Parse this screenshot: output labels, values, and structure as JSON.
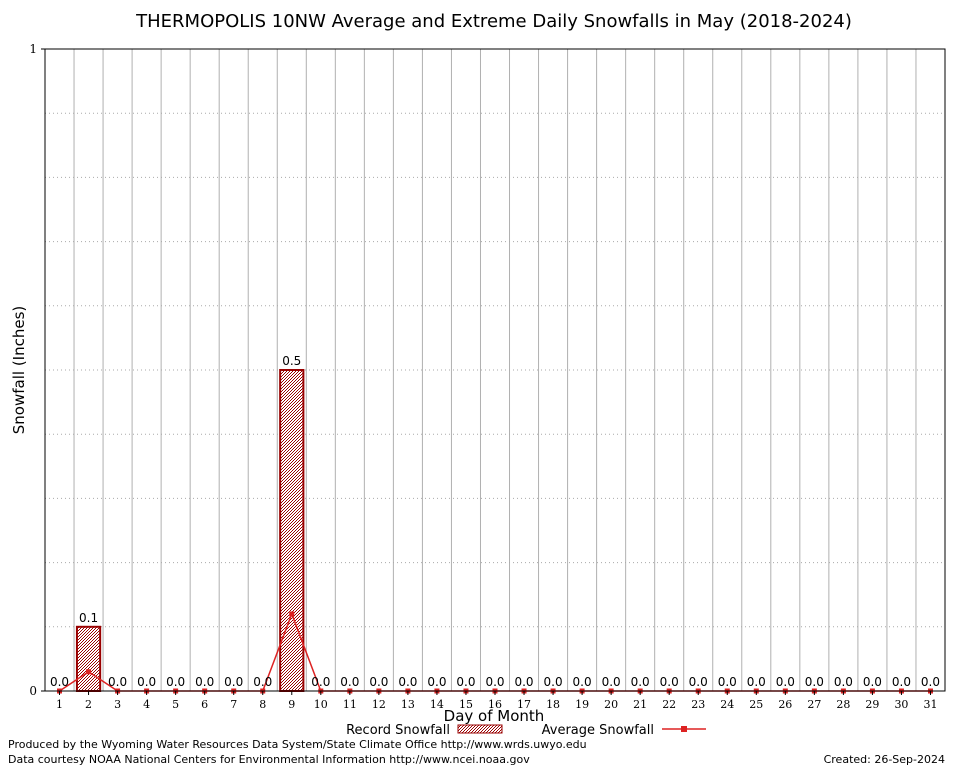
{
  "chart_data": {
    "type": "bar",
    "title": "THERMOPOLIS 10NW Average and Extreme Daily Snowfalls in May (2018-2024)",
    "xlabel": "Day of Month",
    "ylabel": "Snowfall (Inches)",
    "ylim": [
      0,
      1
    ],
    "yticks": [
      "0",
      "1"
    ],
    "grid": true,
    "categories": [
      "1",
      "2",
      "3",
      "4",
      "5",
      "6",
      "7",
      "8",
      "9",
      "10",
      "11",
      "12",
      "13",
      "14",
      "15",
      "16",
      "17",
      "18",
      "19",
      "20",
      "21",
      "22",
      "23",
      "24",
      "25",
      "26",
      "27",
      "28",
      "29",
      "30",
      "31"
    ],
    "series": [
      {
        "name": "Record Snowfall",
        "kind": "bar",
        "color": "#990000",
        "values": [
          0,
          0.1,
          0,
          0,
          0,
          0,
          0,
          0,
          0.5,
          0,
          0,
          0,
          0,
          0,
          0,
          0,
          0,
          0,
          0,
          0,
          0,
          0,
          0,
          0,
          0,
          0,
          0,
          0,
          0,
          0,
          0
        ],
        "labels": [
          "0.0",
          "0.1",
          "0.0",
          "0.0",
          "0.0",
          "0.0",
          "0.0",
          "0.0",
          "0.5",
          "0.0",
          "0.0",
          "0.0",
          "0.0",
          "0.0",
          "0.0",
          "0.0",
          "0.0",
          "0.0",
          "0.0",
          "0.0",
          "0.0",
          "0.0",
          "0.0",
          "0.0",
          "0.0",
          "0.0",
          "0.0",
          "0.0",
          "0.0",
          "0.0",
          "0.0"
        ]
      },
      {
        "name": "Average Snowfall",
        "kind": "line",
        "color": "#dd2222",
        "values": [
          0,
          0.03,
          0,
          0,
          0,
          0,
          0,
          0,
          0.12,
          0,
          0,
          0,
          0,
          0,
          0,
          0,
          0,
          0,
          0,
          0,
          0,
          0,
          0,
          0,
          0,
          0,
          0,
          0,
          0,
          0,
          0
        ]
      }
    ],
    "legend_position": "bottom-center"
  },
  "footer": {
    "line1": "Produced by the Wyoming Water Resources Data System/State Climate Office http://www.wrds.uwyo.edu",
    "line2": "Data courtesy NOAA National Centers for Environmental Information http://www.ncei.noaa.gov",
    "created": "Created:  26-Sep-2024"
  }
}
